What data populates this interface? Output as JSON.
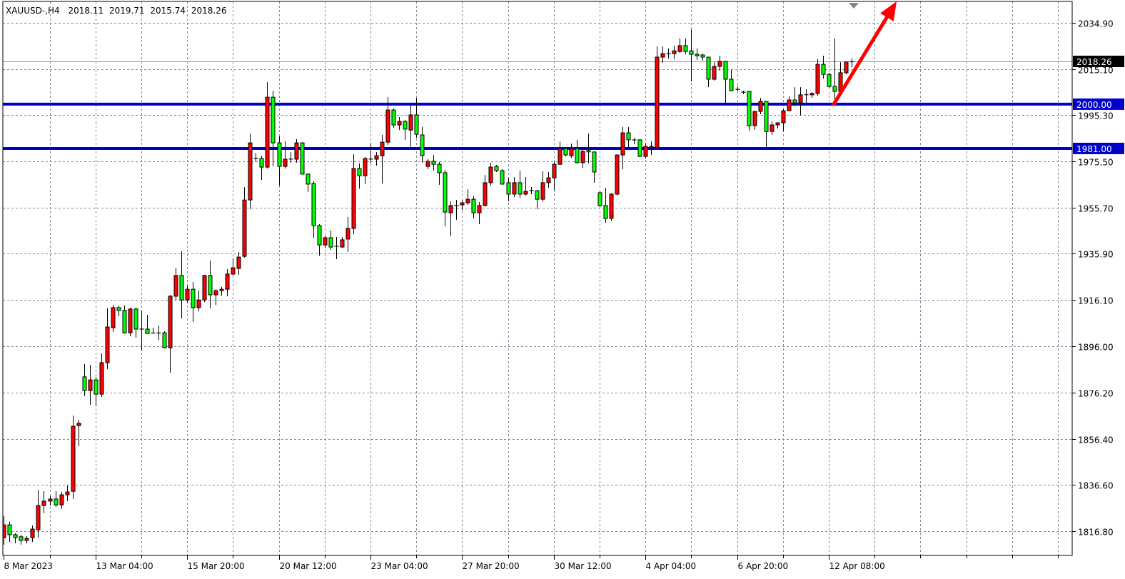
{
  "header": {
    "symbol": "XAUUSD-,H4",
    "open": "2018.11",
    "high": "2019.71",
    "low": "2015.74",
    "close": "2018.26"
  },
  "chart_data": {
    "type": "candlestick",
    "symbol": "XAUUSD-",
    "timeframe": "H4",
    "ylim": [
      1811.0,
      2044.7
    ],
    "grid": true,
    "bull_color": "#ff0000",
    "bear_color": "#00ff00",
    "y_ticks": [
      "2034.90",
      "2015.10",
      "1995.30",
      "1975.50",
      "1955.70",
      "1935.90",
      "1916.10",
      "1896.00",
      "1876.20",
      "1856.40",
      "1836.60",
      "1816.80"
    ],
    "x_ticks": [
      "8 Mar 2023",
      "13 Mar 04:00",
      "15 Mar 20:00",
      "20 Mar 12:00",
      "23 Mar 04:00",
      "27 Mar 20:00",
      "30 Mar 12:00",
      "4 Apr 04:00",
      "6 Apr 20:00",
      "12 Apr 08:00"
    ],
    "current_price": {
      "label": "2018.26",
      "value": 2018.26
    },
    "horizontal_levels": [
      {
        "label": "2000.00",
        "value": 2000.0,
        "color": "#0000cc"
      },
      {
        "label": "1981.00",
        "value": 1981.0,
        "color": "#0000cc"
      }
    ],
    "arrow": {
      "color": "#ff0000",
      "direction": "up",
      "from_price": 2000.0
    },
    "ohlc": [
      [
        1814.0,
        1823.2,
        1811.0,
        1819.5
      ],
      [
        1819.5,
        1820.8,
        1812.2,
        1815.3
      ],
      [
        1815.3,
        1815.9,
        1811.6,
        1814.0
      ],
      [
        1814.4,
        1815.3,
        1811.0,
        1812.8
      ],
      [
        1812.8,
        1814.7,
        1811.6,
        1813.7
      ],
      [
        1814.0,
        1819.2,
        1812.2,
        1817.7
      ],
      [
        1817.4,
        1834.6,
        1814.0,
        1827.8
      ],
      [
        1827.8,
        1834.0,
        1824.5,
        1829.7
      ],
      [
        1829.7,
        1831.8,
        1827.8,
        1830.6
      ],
      [
        1830.6,
        1834.0,
        1827.2,
        1828.1
      ],
      [
        1828.1,
        1833.6,
        1826.3,
        1832.4
      ],
      [
        1832.4,
        1836.4,
        1829.7,
        1833.6
      ],
      [
        1833.9,
        1866.4,
        1830.6,
        1861.8
      ],
      [
        1862.1,
        1864.6,
        1853.2,
        1863.1
      ],
      [
        1883.0,
        1888.5,
        1874.7,
        1877.1
      ],
      [
        1877.1,
        1888.2,
        1871.0,
        1881.7
      ],
      [
        1881.7,
        1883.0,
        1870.4,
        1875.6
      ],
      [
        1875.6,
        1893.1,
        1874.4,
        1889.1
      ],
      [
        1889.1,
        1912.4,
        1886.3,
        1904.4
      ],
      [
        1904.1,
        1913.9,
        1902.3,
        1912.7
      ],
      [
        1912.7,
        1913.6,
        1909.0,
        1911.5
      ],
      [
        1911.5,
        1913.6,
        1901.6,
        1901.9
      ],
      [
        1901.9,
        1912.7,
        1900.4,
        1912.1
      ],
      [
        1912.1,
        1912.7,
        1899.8,
        1903.5
      ],
      [
        1903.5,
        1911.5,
        1894.3,
        1903.5
      ],
      [
        1903.5,
        1909.6,
        1901.6,
        1901.6
      ],
      [
        1901.9,
        1904.1,
        1901.6,
        1901.7
      ],
      [
        1901.9,
        1905.0,
        1898.9,
        1901.8
      ],
      [
        1901.9,
        1902.6,
        1895.2,
        1895.5
      ],
      [
        1895.5,
        1918.2,
        1884.8,
        1917.6
      ],
      [
        1917.6,
        1929.8,
        1916.0,
        1926.5
      ],
      [
        1926.5,
        1936.9,
        1908.1,
        1916.0
      ],
      [
        1916.0,
        1922.2,
        1914.8,
        1920.6
      ],
      [
        1920.6,
        1923.7,
        1906.5,
        1912.7
      ],
      [
        1912.7,
        1920.0,
        1911.1,
        1916.0
      ],
      [
        1916.0,
        1926.8,
        1915.1,
        1926.5
      ],
      [
        1926.5,
        1932.9,
        1912.4,
        1918.2
      ],
      [
        1918.2,
        1920.6,
        1913.9,
        1920.0
      ],
      [
        1920.0,
        1921.6,
        1917.9,
        1920.6
      ],
      [
        1920.6,
        1929.2,
        1917.6,
        1927.1
      ],
      [
        1927.1,
        1933.8,
        1926.5,
        1929.8
      ],
      [
        1929.5,
        1936.6,
        1926.8,
        1934.4
      ],
      [
        1934.7,
        1964.4,
        1934.1,
        1958.9
      ],
      [
        1958.9,
        1987.4,
        1955.0,
        1983.4
      ],
      [
        1976.7,
        1979.1,
        1975.2,
        1976.8
      ],
      [
        1976.7,
        1977.9,
        1967.5,
        1973.0
      ],
      [
        1973.0,
        2009.5,
        1972.4,
        2003.0
      ],
      [
        2003.0,
        2005.8,
        1973.3,
        1983.4
      ],
      [
        1983.4,
        1986.2,
        1965.1,
        1973.3
      ],
      [
        1973.3,
        1984.0,
        1972.4,
        1976.4
      ],
      [
        1976.4,
        1979.4,
        1974.9,
        1976.5
      ],
      [
        1976.4,
        1985.0,
        1974.9,
        1983.4
      ],
      [
        1983.4,
        1983.7,
        1969.8,
        1970.0
      ],
      [
        1970.0,
        1970.3,
        1962.3,
        1965.7
      ],
      [
        1966.0,
        1966.9,
        1942.7,
        1947.9
      ],
      [
        1947.9,
        1948.5,
        1935.0,
        1939.6
      ],
      [
        1939.6,
        1943.6,
        1938.4,
        1942.7
      ],
      [
        1942.7,
        1945.8,
        1937.5,
        1938.7
      ],
      [
        1939.0,
        1943.0,
        1933.5,
        1939.1
      ],
      [
        1938.7,
        1943.0,
        1938.4,
        1941.8
      ],
      [
        1942.1,
        1951.6,
        1936.6,
        1946.7
      ],
      [
        1946.7,
        1978.5,
        1944.2,
        1972.4
      ],
      [
        1972.4,
        1974.6,
        1963.8,
        1969.3
      ],
      [
        1969.3,
        1977.3,
        1965.7,
        1976.7
      ],
      [
        1976.4,
        1983.1,
        1974.6,
        1976.5
      ],
      [
        1976.4,
        1979.4,
        1973.6,
        1977.9
      ],
      [
        1977.9,
        1986.8,
        1966.0,
        1983.7
      ],
      [
        1983.7,
        2003.0,
        1982.5,
        1997.5
      ],
      [
        1997.5,
        1998.1,
        1989.9,
        1991.1
      ],
      [
        1991.1,
        1994.5,
        1988.9,
        1992.6
      ],
      [
        1992.6,
        1993.2,
        1984.7,
        1989.3
      ],
      [
        1988.9,
        1999.4,
        1981.3,
        1995.4
      ],
      [
        1995.4,
        2002.7,
        1985.6,
        1987.1
      ],
      [
        1986.8,
        1990.2,
        1974.9,
        1977.9
      ],
      [
        1973.3,
        1976.4,
        1972.1,
        1975.5
      ],
      [
        1975.5,
        1978.2,
        1971.5,
        1974.2
      ],
      [
        1974.2,
        1975.2,
        1965.4,
        1970.6
      ],
      [
        1970.6,
        1971.8,
        1947.6,
        1953.7
      ],
      [
        1953.4,
        1958.3,
        1943.3,
        1956.5
      ],
      [
        1956.5,
        1958.9,
        1950.4,
        1956.6
      ],
      [
        1956.8,
        1958.9,
        1954.6,
        1957.7
      ],
      [
        1957.7,
        1963.5,
        1956.8,
        1959.2
      ],
      [
        1959.2,
        1960.5,
        1951.0,
        1953.4
      ],
      [
        1953.4,
        1958.0,
        1948.5,
        1956.5
      ],
      [
        1956.5,
        1969.6,
        1956.2,
        1966.3
      ],
      [
        1966.3,
        1974.9,
        1965.1,
        1973.0
      ],
      [
        1973.3,
        1973.9,
        1970.9,
        1971.5
      ],
      [
        1971.5,
        1972.1,
        1965.4,
        1965.7
      ],
      [
        1966.3,
        1968.4,
        1958.3,
        1961.4
      ],
      [
        1961.4,
        1968.7,
        1960.2,
        1966.3
      ],
      [
        1966.3,
        1971.5,
        1959.8,
        1961.4
      ],
      [
        1961.4,
        1968.7,
        1960.8,
        1962.6
      ],
      [
        1962.9,
        1964.4,
        1961.4,
        1963.0
      ],
      [
        1962.9,
        1963.2,
        1954.9,
        1959.2
      ],
      [
        1959.2,
        1971.2,
        1958.3,
        1966.3
      ],
      [
        1966.3,
        1970.9,
        1964.1,
        1968.4
      ],
      [
        1968.4,
        1975.2,
        1963.2,
        1974.2
      ],
      [
        1974.2,
        1984.0,
        1974.0,
        1981.0
      ],
      [
        1981.0,
        1981.6,
        1977.6,
        1978.2
      ],
      [
        1977.9,
        1983.1,
        1977.0,
        1981.0
      ],
      [
        1981.0,
        1984.7,
        1974.6,
        1974.9
      ],
      [
        1974.9,
        1981.6,
        1972.7,
        1979.8
      ],
      [
        1980.1,
        1987.4,
        1974.6,
        1979.5
      ],
      [
        1979.5,
        1979.6,
        1966.3,
        1970.9
      ],
      [
        1962.0,
        1962.6,
        1955.9,
        1956.5
      ],
      [
        1956.5,
        1964.1,
        1949.1,
        1951.0
      ],
      [
        1951.0,
        1961.7,
        1950.0,
        1961.4
      ],
      [
        1961.4,
        1978.5,
        1960.8,
        1978.2
      ],
      [
        1978.2,
        1990.2,
        1972.1,
        1987.7
      ],
      [
        1987.7,
        1990.2,
        1981.3,
        1984.7
      ],
      [
        1984.7,
        1985.6,
        1982.8,
        1984.6
      ],
      [
        1984.7,
        1985.0,
        1977.3,
        1977.6
      ],
      [
        1977.6,
        1983.4,
        1976.7,
        1981.9
      ],
      [
        1981.3,
        1984.0,
        1978.2,
        1981.9
      ],
      [
        1981.3,
        2024.8,
        1981.2,
        2020.2
      ],
      [
        2020.2,
        2024.8,
        2017.7,
        2021.7
      ],
      [
        2021.7,
        2023.9,
        2019.6,
        2021.8
      ],
      [
        2021.7,
        2025.1,
        2019.3,
        2022.9
      ],
      [
        2022.6,
        2028.2,
        2022.0,
        2025.1
      ],
      [
        2025.1,
        2028.2,
        2021.4,
        2022.6
      ],
      [
        2022.9,
        2032.1,
        2009.8,
        2021.4
      ],
      [
        2021.4,
        2023.9,
        2019.0,
        2020.8
      ],
      [
        2021.1,
        2021.7,
        2018.7,
        2020.2
      ],
      [
        2020.2,
        2020.3,
        2007.3,
        2010.7
      ],
      [
        2010.7,
        2018.0,
        2010.1,
        2016.2
      ],
      [
        2016.2,
        2020.8,
        2014.4,
        2018.4
      ],
      [
        2018.4,
        2018.5,
        2000.6,
        2010.7
      ],
      [
        2010.7,
        2014.7,
        2005.6,
        2005.8
      ],
      [
        2006.4,
        2007.6,
        2005.5,
        2006.3
      ],
      [
        2005.2,
        2005.8,
        2004.3,
        2005.1
      ],
      [
        2005.5,
        2005.6,
        1988.6,
        1990.8
      ],
      [
        1990.8,
        1997.0,
        1988.9,
        1996.9
      ],
      [
        1996.9,
        2002.7,
        1995.7,
        2001.2
      ],
      [
        2001.2,
        2001.3,
        1981.3,
        1988.3
      ],
      [
        1988.3,
        1992.6,
        1986.8,
        1991.1
      ],
      [
        1991.1,
        1992.3,
        1989.6,
        1992.0
      ],
      [
        1992.0,
        1998.1,
        1988.3,
        1997.2
      ],
      [
        1997.2,
        2003.3,
        1997.1,
        2001.8
      ],
      [
        2001.8,
        2007.3,
        1999.1,
        2000.6
      ],
      [
        2000.6,
        2007.3,
        1995.1,
        2004.0
      ],
      [
        2004.0,
        2006.4,
        2000.6,
        2004.1
      ],
      [
        2004.0,
        2005.2,
        2002.7,
        2004.6
      ],
      [
        2004.6,
        2019.3,
        2003.7,
        2017.1
      ],
      [
        2017.1,
        2020.8,
        2011.0,
        2012.8
      ],
      [
        2012.8,
        2013.5,
        2007.0,
        2007.6
      ],
      [
        2007.6,
        2028.2,
        2001.2,
        2005.5
      ],
      [
        2005.5,
        2018.0,
        2004.9,
        2013.5
      ],
      [
        2013.5,
        2018.4,
        2012.8,
        2018.1
      ],
      [
        2018.11,
        2019.71,
        2015.74,
        2018.26
      ]
    ]
  }
}
